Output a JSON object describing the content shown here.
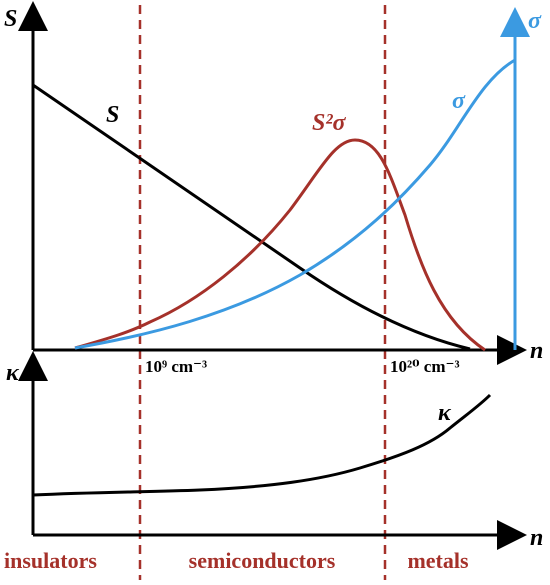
{
  "top_plot": {
    "y_axis_label": "S",
    "y2_axis_label": "σ",
    "x_axis_label": "n",
    "curve_labels": {
      "seebeck": "S",
      "power_factor": "S²σ",
      "conductivity": "σ"
    },
    "markers": [
      "10⁹ cm⁻³",
      "10²⁰ cm⁻³"
    ]
  },
  "bottom_plot": {
    "y_axis_label": "κ",
    "x_axis_label": "n",
    "curve_label": "κ"
  },
  "regions": [
    "insulators",
    "semiconductors",
    "metals"
  ]
}
